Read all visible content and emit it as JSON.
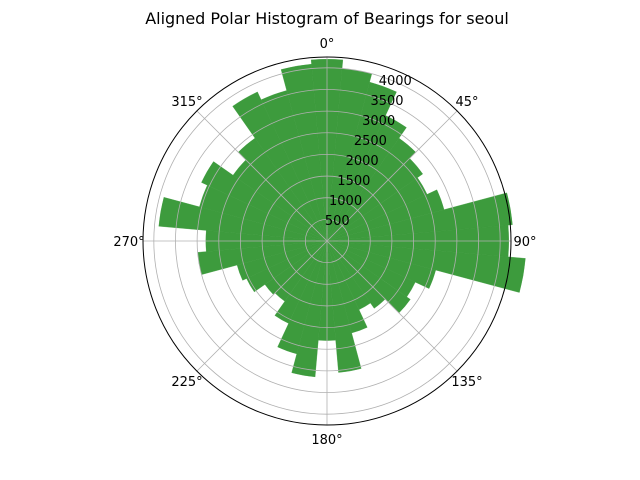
{
  "chart_data": {
    "type": "bar",
    "projection": "polar",
    "title": "Aligned Polar Histogram of Bearings for seoul",
    "theta_direction": "clockwise",
    "theta_zero": "north",
    "angle_tick_labels": [
      "0°",
      "45°",
      "90°",
      "135°",
      "180°",
      "225°",
      "270°",
      "315°"
    ],
    "radial_ticks": [
      500,
      1000,
      1500,
      2000,
      2500,
      3000,
      3500,
      4000
    ],
    "radial_tick_labels": [
      "500",
      "1000",
      "1500",
      "2000",
      "2500",
      "3000",
      "3500",
      "4000"
    ],
    "rmax": 4250,
    "bin_width_deg": 10,
    "grid": true,
    "colors": {
      "bar": "#3d9b3d",
      "grid": "#b0b0b0",
      "spine": "#000000"
    },
    "bars": [
      {
        "theta": 0,
        "r": 4200
      },
      {
        "theta": 10,
        "r": 4000
      },
      {
        "theta": 20,
        "r": 3800
      },
      {
        "theta": 30,
        "r": 3200
      },
      {
        "theta": 40,
        "r": 2900
      },
      {
        "theta": 50,
        "r": 2700
      },
      {
        "theta": 60,
        "r": 2550
      },
      {
        "theta": 70,
        "r": 2800
      },
      {
        "theta": 80,
        "r": 4300
      },
      {
        "theta": 90,
        "r": 4200
      },
      {
        "theta": 100,
        "r": 4600
      },
      {
        "theta": 110,
        "r": 2600
      },
      {
        "theta": 120,
        "r": 2250
      },
      {
        "theta": 130,
        "r": 2350
      },
      {
        "theta": 140,
        "r": 1900
      },
      {
        "theta": 150,
        "r": 1750
      },
      {
        "theta": 160,
        "r": 2200
      },
      {
        "theta": 170,
        "r": 3050
      },
      {
        "theta": 180,
        "r": 2300
      },
      {
        "theta": 190,
        "r": 3150
      },
      {
        "theta": 200,
        "r": 2700
      },
      {
        "theta": 210,
        "r": 2100
      },
      {
        "theta": 220,
        "r": 1700
      },
      {
        "theta": 230,
        "r": 1750
      },
      {
        "theta": 240,
        "r": 2050
      },
      {
        "theta": 250,
        "r": 2150
      },
      {
        "theta": 260,
        "r": 3000
      },
      {
        "theta": 270,
        "r": 2800
      },
      {
        "theta": 280,
        "r": 3900
      },
      {
        "theta": 290,
        "r": 3050
      },
      {
        "theta": 300,
        "r": 3200
      },
      {
        "theta": 310,
        "r": 2650
      },
      {
        "theta": 320,
        "r": 2900
      },
      {
        "theta": 330,
        "r": 3800
      },
      {
        "theta": 340,
        "r": 3600
      },
      {
        "theta": 350,
        "r": 4100
      }
    ]
  }
}
